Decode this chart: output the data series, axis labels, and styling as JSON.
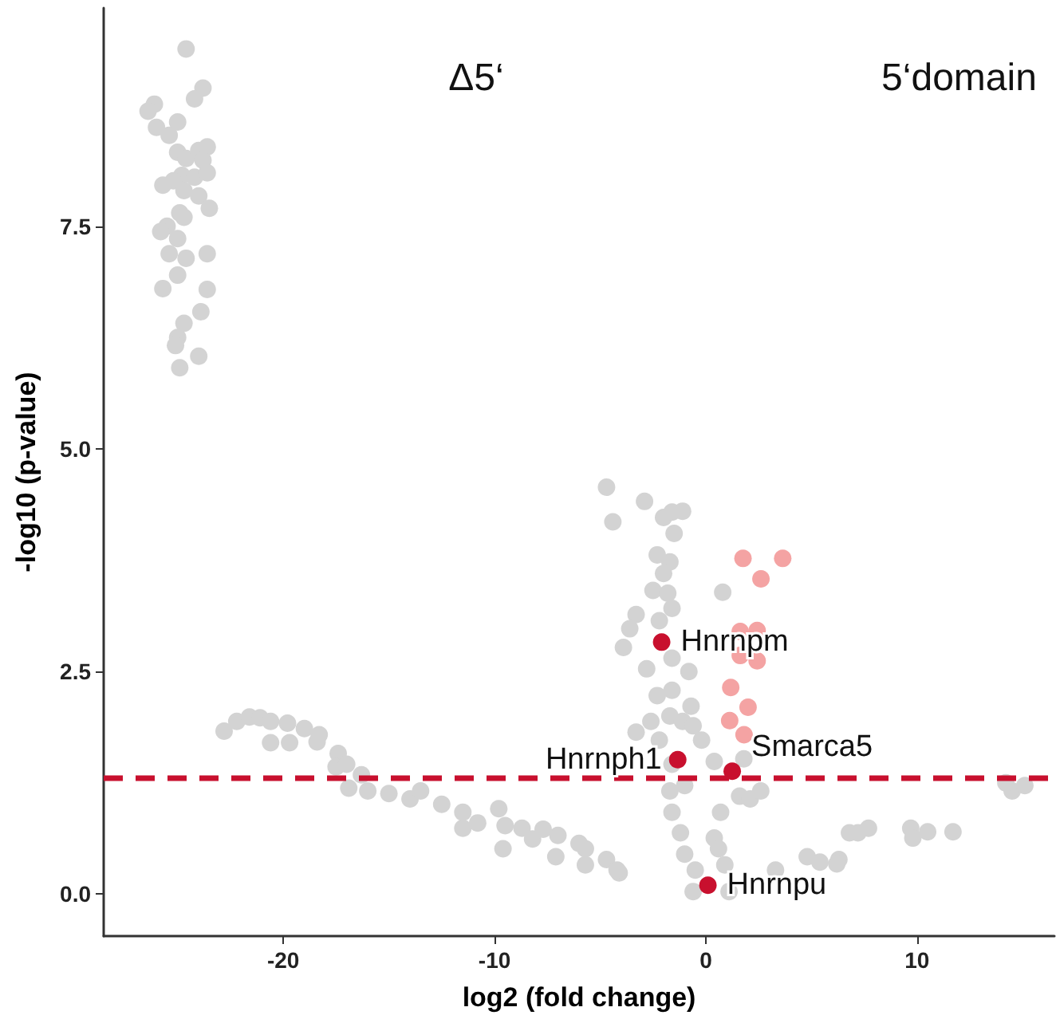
{
  "chart_data": {
    "type": "scatter",
    "xlabel": "log2 (fold change)",
    "ylabel": "-log10 (p-value)",
    "xlim": [
      -28.5,
      16.5
    ],
    "ylim": [
      -0.47,
      9.95
    ],
    "xticks": [
      -20,
      -10,
      0,
      10
    ],
    "yticks": [
      {
        "value": 0,
        "label": "0.0"
      },
      {
        "value": 2.5,
        "label": "2.5"
      },
      {
        "value": 5,
        "label": "5.0"
      },
      {
        "value": 7.5,
        "label": "7.5"
      }
    ],
    "grid": false,
    "marker": "circle",
    "series": [
      {
        "color": "#d3d3d3",
        "x": [
          -24.6,
          -23.8,
          -24.2,
          -26.1,
          -26.4,
          -26.0,
          -25.0,
          -25.4,
          -25.0,
          -24.6,
          -24.0,
          -23.6,
          -23.8,
          -24.8,
          -25.2,
          -25.7,
          -24.2,
          -23.6,
          -24.7,
          -24.0,
          -23.5,
          -24.9,
          -24.7,
          -25.5,
          -25.8,
          -25.0,
          -25.4,
          -24.6,
          -23.6,
          -25.0,
          -25.7,
          -23.6,
          -23.9,
          -24.7,
          -25.0,
          -25.1,
          -24.0,
          -24.9,
          -22.8,
          -22.2,
          -21.6,
          -21.1,
          -20.6,
          -19.8,
          -20.6,
          -19.7,
          -19.0,
          -18.3,
          -18.4,
          -17.4,
          -17.5,
          -17.0,
          -16.9,
          -16.3,
          -16.0,
          -15.0,
          -14.0,
          -13.5,
          -12.5,
          -11.5,
          -9.8,
          -10.8,
          -11.5,
          -9.5,
          -8.7,
          -9.6,
          -8.2,
          -7.7,
          -7.1,
          -7.0,
          -6.0,
          -5.7,
          -4.7,
          -4.1,
          -4.7,
          -4.4,
          -2.9,
          -2.0,
          -1.6,
          -1.1,
          -1.5,
          -2.3,
          -1.7,
          -2.0,
          -2.5,
          -1.8,
          -1.6,
          0.8,
          -3.3,
          -3.6,
          -2.2,
          -3.9,
          -2.8,
          -1.6,
          -0.8,
          -2.3,
          -1.6,
          -0.7,
          -2.6,
          -1.7,
          -1.1,
          -0.6,
          -3.3,
          -2.2,
          -0.2,
          0.4,
          -1.6,
          -1.7,
          -1.0,
          1.6,
          2.1,
          0.7,
          -1.6,
          -1.2,
          0.4,
          -1.0,
          0.6,
          -0.5,
          0.9,
          -0.6,
          1.1,
          3.3,
          -5.7,
          -4.2,
          6.8,
          4.8,
          6.3,
          2.6,
          1.8,
          14.5,
          15.1,
          14.2,
          7.7,
          7.2,
          9.7,
          9.8,
          10.5,
          11.7,
          5.4,
          6.2
        ],
        "values": [
          9.49,
          9.05,
          8.93,
          8.87,
          8.79,
          8.61,
          8.67,
          8.52,
          8.33,
          8.26,
          8.35,
          8.39,
          8.24,
          8.07,
          8.01,
          7.96,
          8.05,
          8.1,
          7.9,
          7.84,
          7.7,
          7.65,
          7.6,
          7.5,
          7.44,
          7.36,
          7.19,
          7.14,
          7.19,
          6.95,
          6.8,
          6.79,
          6.54,
          6.41,
          6.25,
          6.16,
          6.04,
          5.91,
          1.83,
          1.94,
          1.99,
          1.98,
          1.94,
          1.92,
          1.7,
          1.7,
          1.86,
          1.79,
          1.71,
          1.58,
          1.43,
          1.46,
          1.19,
          1.34,
          1.16,
          1.13,
          1.07,
          1.16,
          1.01,
          0.92,
          0.96,
          0.8,
          0.74,
          0.77,
          0.74,
          0.51,
          0.62,
          0.73,
          0.42,
          0.66,
          0.57,
          0.33,
          0.39,
          0.24,
          4.57,
          4.18,
          4.41,
          4.23,
          4.29,
          4.3,
          4.05,
          3.81,
          3.73,
          3.6,
          3.41,
          3.38,
          3.21,
          3.39,
          3.14,
          2.98,
          3.07,
          2.77,
          2.53,
          2.65,
          2.5,
          2.23,
          2.29,
          2.11,
          1.94,
          2.0,
          1.94,
          1.89,
          1.82,
          1.73,
          1.73,
          1.49,
          1.46,
          1.16,
          1.22,
          1.1,
          1.07,
          0.92,
          0.92,
          0.69,
          0.63,
          0.45,
          0.51,
          0.27,
          0.33,
          0.03,
          0.03,
          0.27,
          0.51,
          0.27,
          0.69,
          0.42,
          0.39,
          1.16,
          1.52,
          1.16,
          1.22,
          1.25,
          0.74,
          0.69,
          0.74,
          0.63,
          0.7,
          0.7,
          0.36,
          0.34
        ]
      },
      {
        "color": "#f4a3a3",
        "x": [
          1.76,
          3.64,
          2.61,
          1.63,
          2.43,
          1.63,
          2.43,
          1.18,
          2.0,
          1.13,
          1.81
        ],
        "values": [
          3.77,
          3.77,
          3.54,
          2.95,
          2.96,
          2.68,
          2.62,
          2.32,
          2.1,
          1.95,
          1.79
        ]
      },
      {
        "color": "#c8102e",
        "x": [
          -2.09,
          -1.33,
          1.25,
          0.1
        ],
        "values": [
          2.83,
          1.51,
          1.38,
          0.1
        ]
      }
    ],
    "ref_lines": [
      {
        "axis": "y",
        "value": 1.3,
        "color": "#c8102e",
        "line_style": "dashed"
      }
    ],
    "annotations": [
      "Δ5‘",
      "5‘domain",
      {
        "text": "Hnrnpm",
        "x": -2.09,
        "y": 2.83
      },
      {
        "text": "Hnrnph1",
        "x": -1.33,
        "y": 1.51
      },
      {
        "text": "Smarca5",
        "x": 1.25,
        "y": 1.38
      },
      {
        "text": "Hnrnpu",
        "x": 0.1,
        "y": 0.1
      }
    ]
  }
}
